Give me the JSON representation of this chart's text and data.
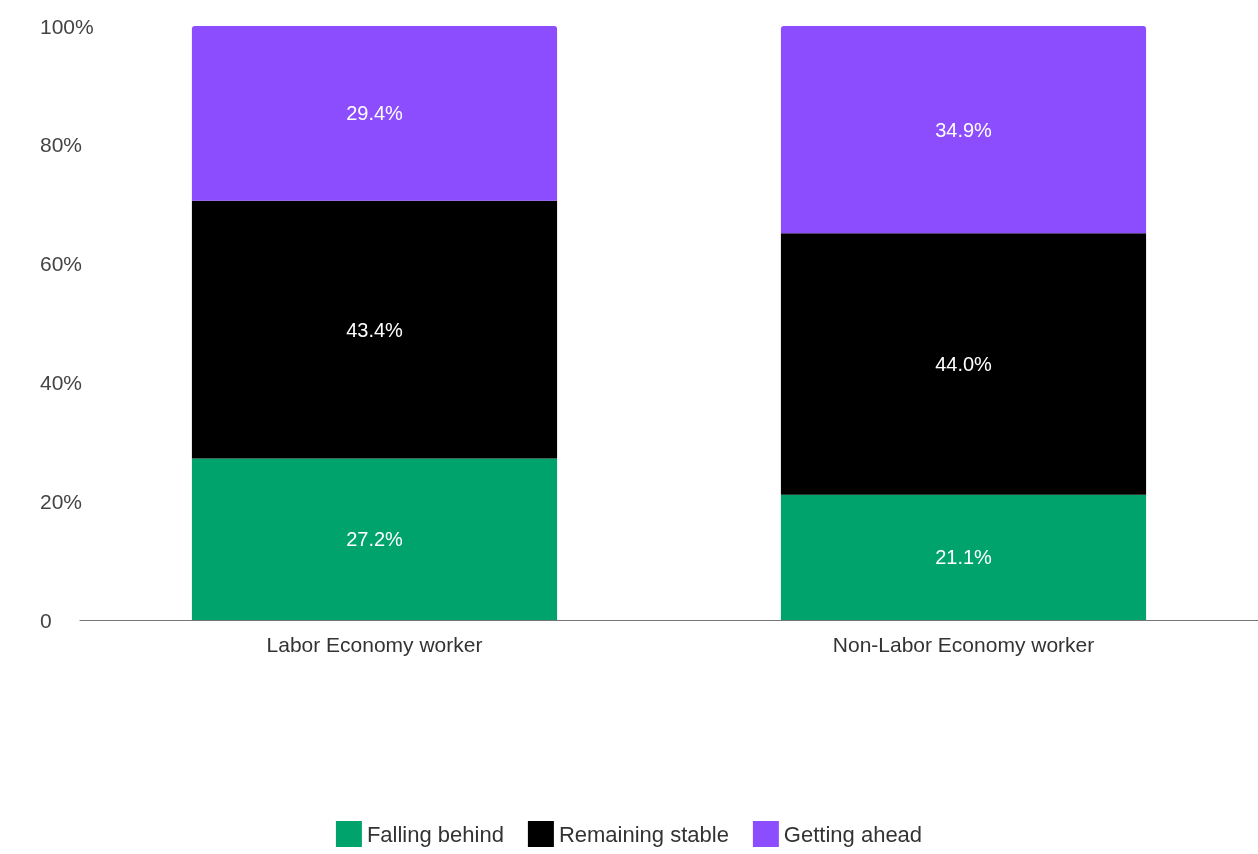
{
  "chart_data": {
    "type": "bar",
    "stacked": true,
    "categories": [
      "Labor Economy worker",
      "Non-Labor Economy worker"
    ],
    "series": [
      {
        "name": "Falling behind",
        "color": "#00a36c",
        "values": [
          27.2,
          21.1
        ],
        "value_labels": [
          "27.2%",
          "21.1%"
        ]
      },
      {
        "name": "Remaining stable",
        "color": "#000000",
        "values": [
          43.4,
          44.0
        ],
        "value_labels": [
          "43.4%",
          "44.0%"
        ]
      },
      {
        "name": "Getting ahead",
        "color": "#8c4dff",
        "values": [
          29.4,
          34.9
        ],
        "value_labels": [
          "29.4%",
          "34.9%"
        ]
      }
    ],
    "ylim": [
      0,
      100
    ],
    "yticks": [
      0,
      {
        "value": 20,
        "label": "20%"
      },
      {
        "value": 40,
        "label": "40%"
      },
      {
        "value": 60,
        "label": "60%"
      },
      {
        "value": 80,
        "label": "80%"
      },
      {
        "value": 100,
        "label": "100%"
      }
    ],
    "grid": false,
    "legend": "bottom"
  }
}
